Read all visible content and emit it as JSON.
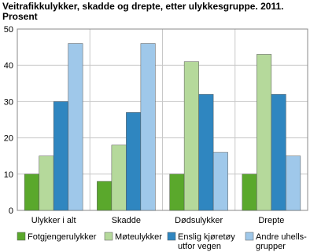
{
  "chart_data": {
    "type": "bar",
    "title": "Veitrafikkulykker, skadde og drepte, etter ulykkesgruppe. 2011.\nProsent",
    "categories": [
      "Ulykker i alt",
      "Skadde",
      "Dødsulykker",
      "Drepte"
    ],
    "series": [
      {
        "name": "Fotgjengerulykker",
        "color": "#5aa82c",
        "values": [
          10,
          8,
          10,
          10
        ]
      },
      {
        "name": "Møteulykker",
        "color": "#b5d99b",
        "values": [
          15,
          18,
          41,
          43
        ]
      },
      {
        "name": "Enslig kjøretøy\nutfor vegen",
        "color": "#2f86c0",
        "values": [
          30,
          27,
          32,
          32
        ]
      },
      {
        "name": "Andre uhells-\ngrupper",
        "color": "#9fc8ea",
        "values": [
          46,
          46,
          16,
          15
        ]
      }
    ],
    "ylim": [
      0,
      50
    ],
    "yticks": [
      0,
      10,
      20,
      30,
      40,
      50
    ],
    "grid": true
  }
}
